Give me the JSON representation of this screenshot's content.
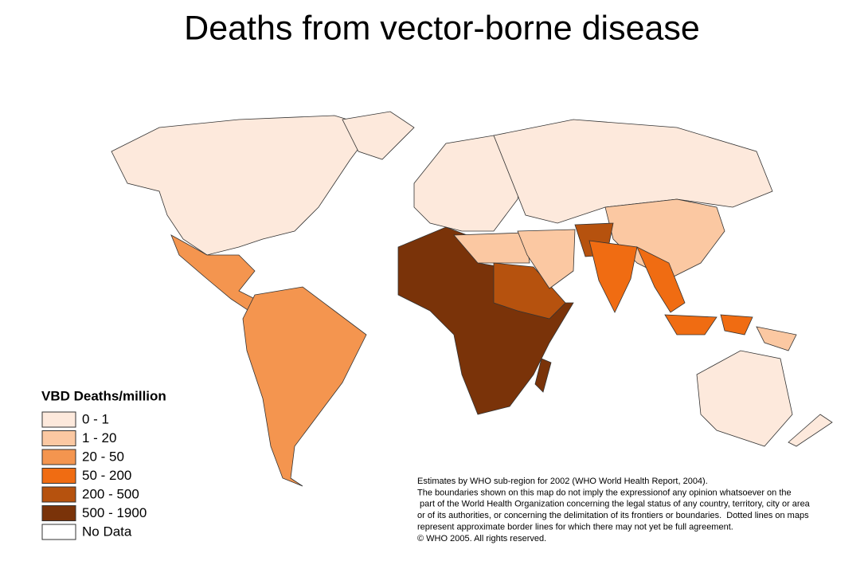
{
  "title": "Deaths from vector-borne disease",
  "legend": {
    "title": "VBD Deaths/million",
    "items": [
      {
        "label": "0 - 1",
        "color": "#fde9dc"
      },
      {
        "label": "1 - 20",
        "color": "#fbc8a2"
      },
      {
        "label": "20 - 50",
        "color": "#f4954f"
      },
      {
        "label": "50 - 200",
        "color": "#f06c12"
      },
      {
        "label": "200 - 500",
        "color": "#b6520e"
      },
      {
        "label": "500 - 1900",
        "color": "#7a3309"
      },
      {
        "label": "No Data",
        "color": "#ffffff"
      }
    ]
  },
  "notes": [
    "Estimates by WHO sub-region for 2002 (WHO World Health Report, 2004).",
    "The boundaries shown on this map do not imply the expressionof any opinion whatsoever on the",
    " part of the World Health Organization concerning the legal status of any country, territory, city or area",
    "or of its authorities, or concerning the delimitation of its frontiers or boundaries.  Dotted lines on maps",
    "represent approximate border lines for which there may not yet be full agreement.",
    "© WHO 2005. All rights reserved."
  ]
}
